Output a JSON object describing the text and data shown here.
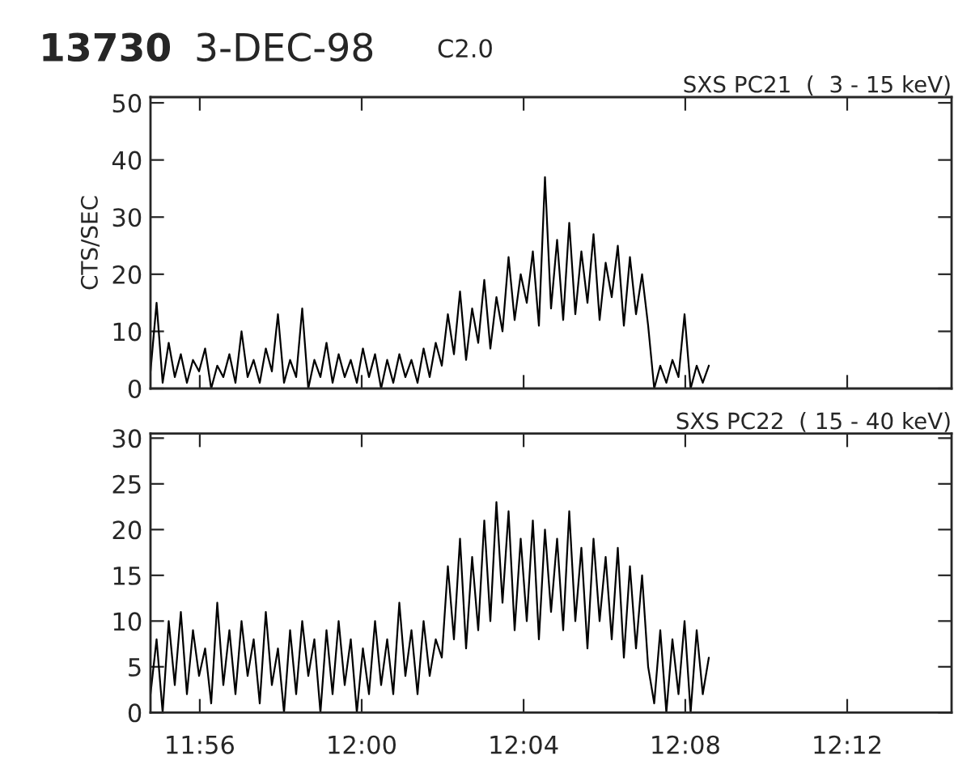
{
  "chart_data": [
    {
      "type": "line",
      "title": "SXS PC21  (  3 - 15 keV)",
      "ylabel": "CTS/SEC",
      "annotations": [
        "13730",
        "3-DEC-98",
        "C2.0"
      ],
      "x": [
        11.913,
        11.9155,
        11.918,
        11.9205,
        11.923,
        11.9255,
        11.928,
        11.9305,
        11.933,
        11.9355,
        11.938,
        11.9405,
        11.943,
        11.9455,
        11.948,
        11.9505,
        11.953,
        11.9555,
        11.958,
        11.9605,
        11.963,
        11.9655,
        11.968,
        11.9705,
        11.973,
        11.9755,
        11.978,
        11.9805,
        11.983,
        11.9855,
        11.988,
        11.9905,
        11.993,
        11.9955,
        11.998,
        12.0005,
        12.003,
        12.0055,
        12.008,
        12.0105,
        12.013,
        12.0155,
        12.018,
        12.0205,
        12.023,
        12.0255,
        12.028,
        12.0305,
        12.033,
        12.0355,
        12.038,
        12.0405,
        12.043,
        12.0455,
        12.048,
        12.0505,
        12.053,
        12.0555,
        12.058,
        12.0605,
        12.063,
        12.0655,
        12.068,
        12.0705,
        12.073,
        12.0755,
        12.078,
        12.0805,
        12.083,
        12.0855,
        12.088,
        12.0905,
        12.093,
        12.0955,
        12.098,
        12.1005,
        12.103,
        12.1055,
        12.108,
        12.1105,
        12.113,
        12.1155,
        12.118,
        12.1205,
        12.123,
        12.1255,
        12.128,
        12.1305,
        12.133,
        12.1355,
        12.138,
        12.1405,
        12.143
      ],
      "series": [
        {
          "color": "#000000",
          "values": [
            3,
            15,
            1,
            8,
            2,
            6,
            1,
            5,
            3,
            7,
            0,
            4,
            2,
            6,
            1,
            10,
            2,
            5,
            1,
            7,
            3,
            13,
            1,
            5,
            2,
            14,
            0,
            5,
            2,
            8,
            1,
            6,
            2,
            5,
            1,
            7,
            2,
            6,
            0,
            5,
            1,
            6,
            2,
            5,
            1,
            7,
            2,
            8,
            4,
            13,
            6,
            17,
            5,
            14,
            8,
            19,
            7,
            16,
            10,
            23,
            12,
            20,
            15,
            24,
            11,
            37,
            14,
            26,
            12,
            29,
            13,
            24,
            15,
            27,
            12,
            22,
            16,
            25,
            11,
            23,
            13,
            20,
            11,
            0,
            4,
            1,
            5,
            2,
            13,
            0,
            4,
            1,
            4
          ]
        }
      ],
      "xlim": [
        11.913,
        12.243
      ],
      "xticks": [
        {
          "value": 11.9333,
          "label": null
        },
        {
          "value": 12.0,
          "label": null
        },
        {
          "value": 12.0667,
          "label": null
        },
        {
          "value": 12.1333,
          "label": null
        },
        {
          "value": 12.2,
          "label": null
        }
      ],
      "ylim": [
        0,
        51
      ],
      "yticks": [
        0,
        10,
        20,
        30,
        40,
        50
      ],
      "tick_labels": "y",
      "grid": false,
      "line_style": "solid"
    },
    {
      "type": "line",
      "title": "SXS PC22  ( 15 - 40 keV)",
      "x": [
        11.913,
        11.9155,
        11.918,
        11.9205,
        11.923,
        11.9255,
        11.928,
        11.9305,
        11.933,
        11.9355,
        11.938,
        11.9405,
        11.943,
        11.9455,
        11.948,
        11.9505,
        11.953,
        11.9555,
        11.958,
        11.9605,
        11.963,
        11.9655,
        11.968,
        11.9705,
        11.973,
        11.9755,
        11.978,
        11.9805,
        11.983,
        11.9855,
        11.988,
        11.9905,
        11.993,
        11.9955,
        11.998,
        12.0005,
        12.003,
        12.0055,
        12.008,
        12.0105,
        12.013,
        12.0155,
        12.018,
        12.0205,
        12.023,
        12.0255,
        12.028,
        12.0305,
        12.033,
        12.0355,
        12.038,
        12.0405,
        12.043,
        12.0455,
        12.048,
        12.0505,
        12.053,
        12.0555,
        12.058,
        12.0605,
        12.063,
        12.0655,
        12.068,
        12.0705,
        12.073,
        12.0755,
        12.078,
        12.0805,
        12.083,
        12.0855,
        12.088,
        12.0905,
        12.093,
        12.0955,
        12.098,
        12.1005,
        12.103,
        12.1055,
        12.108,
        12.1105,
        12.113,
        12.1155,
        12.118,
        12.1205,
        12.123,
        12.1255,
        12.128,
        12.1305,
        12.133,
        12.1355,
        12.138,
        12.1405,
        12.143
      ],
      "series": [
        {
          "color": "#000000",
          "values": [
            2,
            8,
            0,
            10,
            3,
            11,
            2,
            9,
            4,
            7,
            1,
            12,
            3,
            9,
            2,
            10,
            4,
            8,
            1,
            11,
            3,
            7,
            0,
            9,
            2,
            10,
            4,
            8,
            0,
            9,
            2,
            10,
            3,
            8,
            0,
            7,
            2,
            10,
            3,
            8,
            2,
            12,
            4,
            9,
            2,
            10,
            4,
            8,
            6,
            16,
            8,
            19,
            7,
            17,
            9,
            21,
            10,
            23,
            12,
            22,
            9,
            19,
            10,
            21,
            8,
            20,
            11,
            19,
            9,
            22,
            10,
            18,
            7,
            19,
            10,
            17,
            8,
            18,
            6,
            16,
            7,
            15,
            5,
            1,
            9,
            0,
            8,
            2,
            10,
            0,
            9,
            2,
            6
          ]
        }
      ],
      "xlim": [
        11.913,
        12.243
      ],
      "xticks": [
        {
          "value": 11.9333,
          "label": "11:56"
        },
        {
          "value": 12.0,
          "label": "12:00"
        },
        {
          "value": 12.0667,
          "label": "12:04"
        },
        {
          "value": 12.1333,
          "label": "12:08"
        },
        {
          "value": 12.2,
          "label": "12:12"
        }
      ],
      "ylim": [
        0,
        30.5
      ],
      "yticks": [
        0,
        5,
        10,
        15,
        20,
        25,
        30
      ],
      "grid": false,
      "line_style": "solid"
    }
  ]
}
